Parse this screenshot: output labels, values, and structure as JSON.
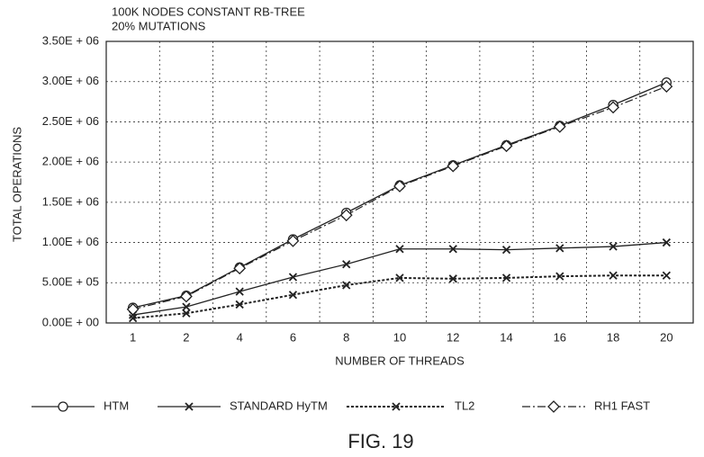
{
  "chart_data": {
    "type": "line",
    "title": "100K NODES CONSTANT RB-TREE",
    "subtitle": "20% MUTATIONS",
    "x_label": "NUMBER OF THREADS",
    "y_label": "TOTAL OPERATIONS",
    "caption": "FIG. 19",
    "categories": [
      "1",
      "2",
      "4",
      "6",
      "8",
      "10",
      "12",
      "14",
      "16",
      "18",
      "20"
    ],
    "ylim": [
      0,
      3500000
    ],
    "yticks": [
      {
        "value": 0,
        "label": "0.00E + 00"
      },
      {
        "value": 500000,
        "label": "5.00E + 05"
      },
      {
        "value": 1000000,
        "label": "1.00E + 06"
      },
      {
        "value": 1500000,
        "label": "1.50E + 06"
      },
      {
        "value": 2000000,
        "label": "2.00E + 06"
      },
      {
        "value": 2500000,
        "label": "2.50E + 06"
      },
      {
        "value": 3000000,
        "label": "3.00E + 06"
      },
      {
        "value": 3500000,
        "label": "3.50E + 06"
      }
    ],
    "grid": true,
    "series": [
      {
        "name": "HTM",
        "color": "#222222",
        "marker": "circle",
        "dash": "solid",
        "values": [
          190000,
          340000,
          690000,
          1040000,
          1370000,
          1710000,
          1960000,
          2210000,
          2450000,
          2710000,
          2990000
        ]
      },
      {
        "name": "STANDARD HyTM",
        "color": "#222222",
        "marker": "x",
        "dash": "solid",
        "values": [
          100000,
          200000,
          390000,
          570000,
          730000,
          920000,
          920000,
          910000,
          930000,
          950000,
          1000000
        ]
      },
      {
        "name": "TL2",
        "color": "#222222",
        "marker": "x",
        "dash": "dotted",
        "values": [
          60000,
          120000,
          230000,
          350000,
          470000,
          560000,
          550000,
          560000,
          580000,
          590000,
          590000
        ]
      },
      {
        "name": "RH1  FAST",
        "color": "#222222",
        "marker": "diamond",
        "dash": "dashdot",
        "values": [
          170000,
          330000,
          680000,
          1020000,
          1340000,
          1700000,
          1950000,
          2200000,
          2440000,
          2680000,
          2940000
        ]
      }
    ]
  }
}
